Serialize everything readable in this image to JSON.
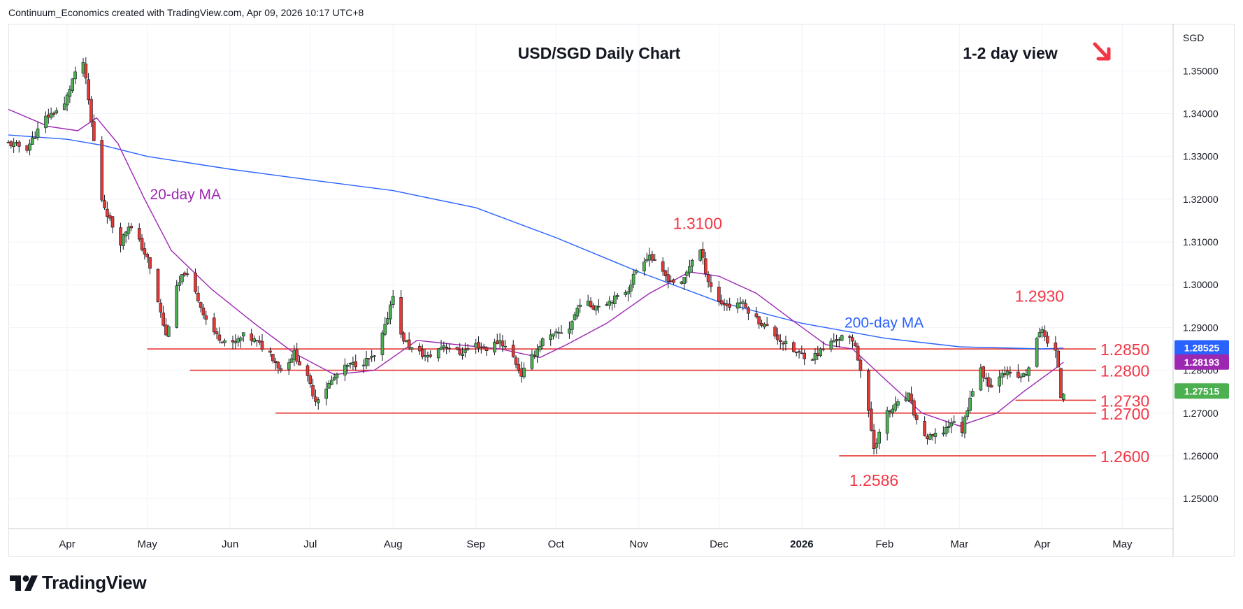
{
  "header": {
    "attribution": "Continuum_Economics created with TradingView.com, Apr 09, 2026 10:17 UTC+8"
  },
  "brand": {
    "name": "TradingView",
    "icon": "tradingview-logo-icon"
  },
  "colors": {
    "up": "#4caf50",
    "down": "#e53935",
    "ma20": "#9c27b0",
    "ma200": "#2962ff",
    "level_line": "#e53935",
    "annotation": "#f23645",
    "grid": "#f0f3fa",
    "text": "#131722"
  },
  "chart_data": {
    "type": "candlestick",
    "title": "USD/SGD Daily Chart",
    "view_label": "1-2 day view",
    "view_arrow": "down-right-arrow-icon",
    "axis_unit": "SGD",
    "ylim": [
      1.243,
      1.361
    ],
    "xlim": [
      "2025-03-10",
      "2026-05-20"
    ],
    "y_ticks": [
      "1.25000",
      "1.26000",
      "1.27000",
      "1.28000",
      "1.29000",
      "1.30000",
      "1.31000",
      "1.32000",
      "1.33000",
      "1.34000",
      "1.35000"
    ],
    "x_ticks": [
      {
        "label": "Apr",
        "date": "2025-04-01"
      },
      {
        "label": "May",
        "date": "2025-05-01"
      },
      {
        "label": "Jun",
        "date": "2025-06-01"
      },
      {
        "label": "Jul",
        "date": "2025-07-01"
      },
      {
        "label": "Aug",
        "date": "2025-08-01"
      },
      {
        "label": "Sep",
        "date": "2025-09-01"
      },
      {
        "label": "Oct",
        "date": "2025-10-01"
      },
      {
        "label": "Nov",
        "date": "2025-11-01"
      },
      {
        "label": "Dec",
        "date": "2025-12-01"
      },
      {
        "label": "2026",
        "date": "2026-01-01",
        "bold": true
      },
      {
        "label": "Feb",
        "date": "2026-02-01"
      },
      {
        "label": "Mar",
        "date": "2026-03-01"
      },
      {
        "label": "Apr",
        "date": "2026-04-01"
      },
      {
        "label": "May",
        "date": "2026-05-01"
      }
    ],
    "close_path": [
      [
        "2025-03-10",
        1.333
      ],
      [
        "2025-03-17",
        1.332
      ],
      [
        "2025-03-24",
        1.339
      ],
      [
        "2025-03-31",
        1.342
      ],
      [
        "2025-04-03",
        1.348
      ],
      [
        "2025-04-07",
        1.352
      ],
      [
        "2025-04-09",
        1.343
      ],
      [
        "2025-04-10",
        1.338
      ],
      [
        "2025-04-14",
        1.32
      ],
      [
        "2025-04-17",
        1.315
      ],
      [
        "2025-04-21",
        1.31
      ],
      [
        "2025-04-24",
        1.314
      ],
      [
        "2025-04-28",
        1.31
      ],
      [
        "2025-05-01",
        1.306
      ],
      [
        "2025-05-05",
        1.296
      ],
      [
        "2025-05-08",
        1.288
      ],
      [
        "2025-05-12",
        1.299
      ],
      [
        "2025-05-15",
        1.303
      ],
      [
        "2025-05-19",
        1.298
      ],
      [
        "2025-05-23",
        1.292
      ],
      [
        "2025-05-27",
        1.288
      ],
      [
        "2025-06-02",
        1.286
      ],
      [
        "2025-06-06",
        1.288
      ],
      [
        "2025-06-10",
        1.287
      ],
      [
        "2025-06-16",
        1.284
      ],
      [
        "2025-06-20",
        1.28
      ],
      [
        "2025-06-25",
        1.284
      ],
      [
        "2025-06-30",
        1.278
      ],
      [
        "2025-07-03",
        1.273
      ],
      [
        "2025-07-07",
        1.276
      ],
      [
        "2025-07-11",
        1.279
      ],
      [
        "2025-07-15",
        1.281
      ],
      [
        "2025-07-21",
        1.282
      ],
      [
        "2025-07-25",
        1.283
      ],
      [
        "2025-07-29",
        1.29
      ],
      [
        "2025-08-01",
        1.298
      ],
      [
        "2025-08-04",
        1.288
      ],
      [
        "2025-08-08",
        1.285
      ],
      [
        "2025-08-14",
        1.283
      ],
      [
        "2025-08-20",
        1.286
      ],
      [
        "2025-08-26",
        1.284
      ],
      [
        "2025-09-01",
        1.286
      ],
      [
        "2025-09-05",
        1.285
      ],
      [
        "2025-09-10",
        1.287
      ],
      [
        "2025-09-15",
        1.283
      ],
      [
        "2025-09-18",
        1.279
      ],
      [
        "2025-09-22",
        1.283
      ],
      [
        "2025-09-26",
        1.287
      ],
      [
        "2025-09-30",
        1.288
      ],
      [
        "2025-10-06",
        1.29
      ],
      [
        "2025-10-10",
        1.296
      ],
      [
        "2025-10-15",
        1.295
      ],
      [
        "2025-10-20",
        1.296
      ],
      [
        "2025-10-24",
        1.297
      ],
      [
        "2025-10-28",
        1.299
      ],
      [
        "2025-11-01",
        1.305
      ],
      [
        "2025-11-05",
        1.307
      ],
      [
        "2025-11-09",
        1.303
      ],
      [
        "2025-11-13",
        1.301
      ],
      [
        "2025-11-17",
        1.3
      ],
      [
        "2025-11-21",
        1.306
      ],
      [
        "2025-11-24",
        1.308
      ],
      [
        "2025-11-27",
        1.301
      ],
      [
        "2025-12-01",
        1.296
      ],
      [
        "2025-12-05",
        1.295
      ],
      [
        "2025-12-09",
        1.296
      ],
      [
        "2025-12-15",
        1.292
      ],
      [
        "2025-12-19",
        1.29
      ],
      [
        "2025-12-24",
        1.287
      ],
      [
        "2025-12-30",
        1.284
      ],
      [
        "2026-01-05",
        1.283
      ],
      [
        "2026-01-09",
        1.285
      ],
      [
        "2026-01-13",
        1.287
      ],
      [
        "2026-01-17",
        1.288
      ],
      [
        "2026-01-21",
        1.286
      ],
      [
        "2026-01-23",
        1.28
      ],
      [
        "2026-01-26",
        1.27
      ],
      [
        "2026-01-28",
        1.262
      ],
      [
        "2026-02-02",
        1.27
      ],
      [
        "2026-02-06",
        1.272
      ],
      [
        "2026-02-10",
        1.274
      ],
      [
        "2026-02-13",
        1.268
      ],
      [
        "2026-02-17",
        1.264
      ],
      [
        "2026-02-22",
        1.265
      ],
      [
        "2026-02-26",
        1.268
      ],
      [
        "2026-03-02",
        1.266
      ],
      [
        "2026-03-05",
        1.274
      ],
      [
        "2026-03-09",
        1.28
      ],
      [
        "2026-03-13",
        1.276
      ],
      [
        "2026-03-17",
        1.28
      ],
      [
        "2026-03-22",
        1.278
      ],
      [
        "2026-03-26",
        1.279
      ],
      [
        "2026-03-30",
        1.287
      ],
      [
        "2026-04-01",
        1.29
      ],
      [
        "2026-04-03",
        1.286
      ],
      [
        "2026-04-06",
        1.284
      ],
      [
        "2026-04-07",
        1.281
      ],
      [
        "2026-04-08",
        1.274
      ],
      [
        "2026-04-09",
        1.2752
      ]
    ],
    "ma20_path": [
      [
        "2025-03-10",
        1.341
      ],
      [
        "2025-03-25",
        1.337
      ],
      [
        "2025-04-05",
        1.336
      ],
      [
        "2025-04-12",
        1.339
      ],
      [
        "2025-04-20",
        1.333
      ],
      [
        "2025-04-30",
        1.32
      ],
      [
        "2025-05-10",
        1.308
      ],
      [
        "2025-05-25",
        1.299
      ],
      [
        "2025-06-10",
        1.291
      ],
      [
        "2025-06-25",
        1.284
      ],
      [
        "2025-07-10",
        1.279
      ],
      [
        "2025-07-25",
        1.28
      ],
      [
        "2025-08-10",
        1.287
      ],
      [
        "2025-08-25",
        1.286
      ],
      [
        "2025-09-10",
        1.285
      ],
      [
        "2025-09-25",
        1.283
      ],
      [
        "2025-10-05",
        1.286
      ],
      [
        "2025-10-20",
        1.291
      ],
      [
        "2025-11-05",
        1.298
      ],
      [
        "2025-11-20",
        1.303
      ],
      [
        "2025-12-01",
        1.302
      ],
      [
        "2025-12-15",
        1.298
      ],
      [
        "2025-12-30",
        1.291
      ],
      [
        "2026-01-10",
        1.286
      ],
      [
        "2026-01-20",
        1.285
      ],
      [
        "2026-02-01",
        1.278
      ],
      [
        "2026-02-15",
        1.27
      ],
      [
        "2026-03-01",
        1.267
      ],
      [
        "2026-03-15",
        1.27
      ],
      [
        "2026-03-25",
        1.275
      ],
      [
        "2026-04-05",
        1.28
      ],
      [
        "2026-04-09",
        1.2819
      ]
    ],
    "ma200_path": [
      [
        "2025-03-10",
        1.335
      ],
      [
        "2025-04-01",
        1.334
      ],
      [
        "2025-04-15",
        1.3325
      ],
      [
        "2025-05-01",
        1.33
      ],
      [
        "2025-06-01",
        1.327
      ],
      [
        "2025-07-01",
        1.3245
      ],
      [
        "2025-08-01",
        1.322
      ],
      [
        "2025-09-01",
        1.318
      ],
      [
        "2025-10-01",
        1.311
      ],
      [
        "2025-11-01",
        1.303
      ],
      [
        "2025-12-01",
        1.296
      ],
      [
        "2026-01-01",
        1.291
      ],
      [
        "2026-02-01",
        1.2875
      ],
      [
        "2026-03-01",
        1.2855
      ],
      [
        "2026-04-01",
        1.285
      ],
      [
        "2026-04-09",
        1.2852
      ]
    ],
    "series": [
      {
        "name": "20-day MA",
        "line": "ma20_path",
        "label": {
          "date": "2025-05-02",
          "y": 1.32
        }
      },
      {
        "name": "200-day MA",
        "line": "ma200_path",
        "label": {
          "date": "2026-01-17",
          "y": 1.29
        }
      }
    ],
    "levels": [
      {
        "value": 1.285,
        "label": "1.2850",
        "from": "2025-05-01"
      },
      {
        "value": 1.28,
        "label": "1.2800",
        "from": "2025-05-17"
      },
      {
        "value": 1.273,
        "label": "1.2730",
        "from": "2026-03-22"
      },
      {
        "value": 1.27,
        "label": "1.2700",
        "from": "2025-06-18"
      },
      {
        "value": 1.26,
        "label": "1.2600",
        "from": "2026-01-15"
      }
    ],
    "annotations": [
      {
        "text": "1.3100",
        "date": "2025-11-23",
        "y": 1.313,
        "color": "#f23645"
      },
      {
        "text": "1.2930",
        "date": "2026-03-31",
        "y": 1.296,
        "color": "#f23645"
      },
      {
        "text": "1.2586",
        "date": "2026-01-28",
        "y": 1.253,
        "color": "#f23645"
      }
    ],
    "price_badges": [
      {
        "text": "1.28525",
        "value": 1.28525,
        "color": "#2962ff"
      },
      {
        "text": "1.28193",
        "value": 1.28193,
        "color": "#9c27b0"
      },
      {
        "text": "1.27515",
        "value": 1.27515,
        "color": "#4caf50"
      }
    ]
  }
}
